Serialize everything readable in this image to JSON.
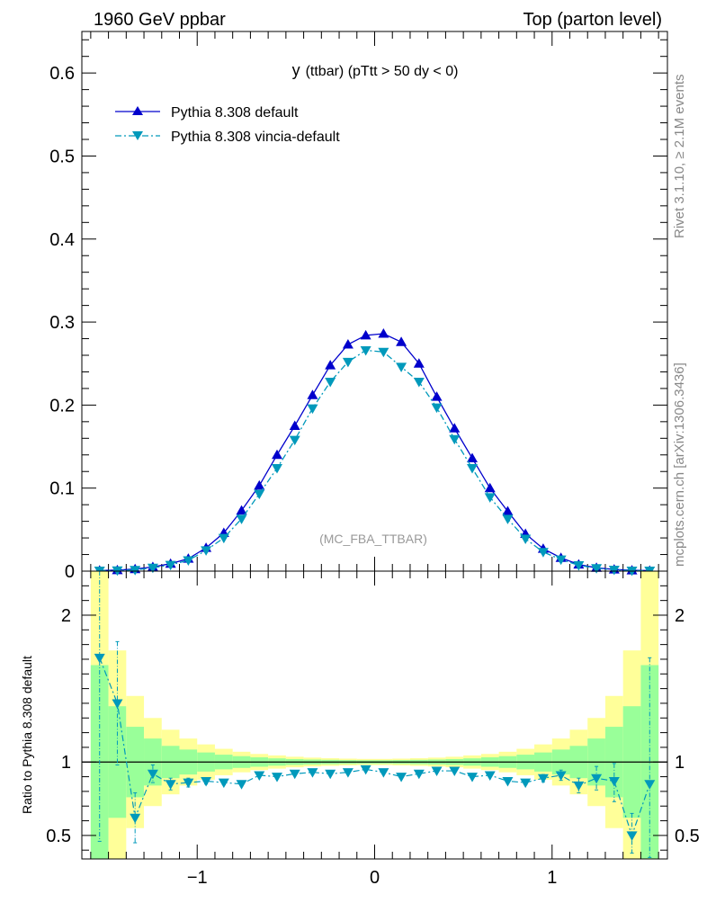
{
  "header": {
    "left": "1960 GeV ppbar",
    "right": "Top (parton level)"
  },
  "side_labels": {
    "rivet": "Rivet 3.1.10, ≥ 2.1M events",
    "mcplots": "mcplots.cern.ch [arXiv:1306.3436]"
  },
  "ratio_ylabel": "Ratio to Pythia 8.308 default",
  "colors": {
    "default": "#0000cc",
    "vincia": "#0099bb",
    "band_inner": "#99ff99",
    "band_outer": "#ffff99"
  },
  "chart_data": [
    {
      "type": "line",
      "panel": "main",
      "title_main": "y",
      "title_rest": "(ttbar) (pTtt > 50 dy < 0)",
      "watermark": "(MC_FBA_TTBAR)",
      "xlim": [
        -1.65,
        1.65
      ],
      "ylim": [
        0,
        0.65
      ],
      "x_ticks": [
        -1,
        0,
        1
      ],
      "y_ticks": [
        0,
        0.1,
        0.2,
        0.3,
        0.4,
        0.5,
        0.6
      ],
      "y_tick_labels": [
        "0",
        "0.1",
        "0.2",
        "0.3",
        "0.4",
        "0.5",
        "0.6"
      ],
      "legend_position": "top-left",
      "x": [
        -1.55,
        -1.45,
        -1.35,
        -1.25,
        -1.15,
        -1.05,
        -0.95,
        -0.85,
        -0.75,
        -0.65,
        -0.55,
        -0.45,
        -0.35,
        -0.25,
        -0.15,
        -0.05,
        0.05,
        0.15,
        0.25,
        0.35,
        0.45,
        0.55,
        0.65,
        0.75,
        0.85,
        0.95,
        1.05,
        1.15,
        1.25,
        1.35,
        1.45,
        1.55
      ],
      "series": [
        {
          "name": "Pythia 8.308 default",
          "marker": "triangle-up",
          "line": "solid",
          "values": [
            0.0008,
            0.0012,
            0.0025,
            0.005,
            0.009,
            0.015,
            0.028,
            0.046,
            0.073,
            0.103,
            0.14,
            0.175,
            0.212,
            0.248,
            0.273,
            0.284,
            0.286,
            0.276,
            0.25,
            0.21,
            0.172,
            0.136,
            0.1,
            0.072,
            0.045,
            0.027,
            0.016,
            0.008,
            0.004,
            0.002,
            0.001,
            0.0006
          ]
        },
        {
          "name": "Pythia 8.308 vincia-default",
          "marker": "triangle-down",
          "line": "dashdot",
          "values": [
            0.0006,
            0.0008,
            0.0014,
            0.004,
            0.0075,
            0.013,
            0.025,
            0.04,
            0.063,
            0.093,
            0.124,
            0.158,
            0.196,
            0.228,
            0.252,
            0.266,
            0.264,
            0.246,
            0.228,
            0.197,
            0.159,
            0.124,
            0.089,
            0.063,
            0.039,
            0.023,
            0.014,
            0.007,
            0.0035,
            0.0016,
            0.0005,
            0.0005
          ]
        }
      ]
    },
    {
      "type": "line",
      "panel": "ratio",
      "xlim": [
        -1.65,
        1.65
      ],
      "ylim": [
        0.34,
        2.3
      ],
      "x_ticks": [
        -1,
        0,
        1
      ],
      "x_tick_labels": [
        "−1",
        "0",
        "1"
      ],
      "y_ticks": [
        0.5,
        1,
        2
      ],
      "y_tick_labels": [
        "0.5",
        "1",
        "2"
      ],
      "reference_line": 1,
      "x": [
        -1.55,
        -1.45,
        -1.35,
        -1.25,
        -1.15,
        -1.05,
        -0.95,
        -0.85,
        -0.75,
        -0.65,
        -0.55,
        -0.45,
        -0.35,
        -0.25,
        -0.15,
        -0.05,
        0.05,
        0.15,
        0.25,
        0.35,
        0.45,
        0.55,
        0.65,
        0.75,
        0.85,
        0.95,
        1.05,
        1.15,
        1.25,
        1.35,
        1.45,
        1.55
      ],
      "band_inner_halfwidth": [
        0.66,
        0.38,
        0.24,
        0.16,
        0.11,
        0.085,
        0.065,
        0.05,
        0.04,
        0.032,
        0.025,
        0.02,
        0.017,
        0.015,
        0.013,
        0.012,
        0.012,
        0.013,
        0.015,
        0.017,
        0.02,
        0.025,
        0.032,
        0.04,
        0.05,
        0.065,
        0.085,
        0.11,
        0.16,
        0.24,
        0.38,
        0.66
      ],
      "band_outer_halfwidth": [
        1.5,
        0.76,
        0.45,
        0.3,
        0.22,
        0.16,
        0.12,
        0.09,
        0.07,
        0.055,
        0.045,
        0.036,
        0.03,
        0.026,
        0.023,
        0.021,
        0.021,
        0.023,
        0.026,
        0.03,
        0.036,
        0.045,
        0.055,
        0.07,
        0.09,
        0.12,
        0.16,
        0.22,
        0.3,
        0.45,
        0.76,
        1.5
      ],
      "series": [
        {
          "name": "Pythia 8.308 vincia-default",
          "marker": "triangle-down",
          "line": "dashdot",
          "values": [
            1.71,
            1.4,
            0.62,
            0.92,
            0.85,
            0.86,
            0.87,
            0.86,
            0.85,
            0.91,
            0.9,
            0.92,
            0.93,
            0.92,
            0.93,
            0.95,
            0.93,
            0.9,
            0.92,
            0.94,
            0.94,
            0.9,
            0.91,
            0.87,
            0.86,
            0.89,
            0.91,
            0.84,
            0.89,
            0.87,
            0.5,
            0.85
          ],
          "err_low": [
            1.25,
            0.42,
            0.17,
            0.06,
            0.04,
            0.03,
            0.02,
            0.015,
            0.012,
            0.01,
            0.008,
            0.007,
            0.006,
            0.006,
            0.005,
            0.005,
            0.005,
            0.005,
            0.006,
            0.006,
            0.007,
            0.008,
            0.01,
            0.012,
            0.015,
            0.025,
            0.035,
            0.05,
            0.08,
            0.14,
            0.12,
            0.5
          ],
          "err_high": [
            0.6,
            0.42,
            0.17,
            0.06,
            0.04,
            0.03,
            0.02,
            0.015,
            0.012,
            0.01,
            0.008,
            0.007,
            0.006,
            0.006,
            0.005,
            0.005,
            0.005,
            0.005,
            0.006,
            0.006,
            0.007,
            0.008,
            0.01,
            0.012,
            0.015,
            0.025,
            0.035,
            0.05,
            0.08,
            0.12,
            0.15,
            0.86
          ]
        }
      ]
    }
  ]
}
